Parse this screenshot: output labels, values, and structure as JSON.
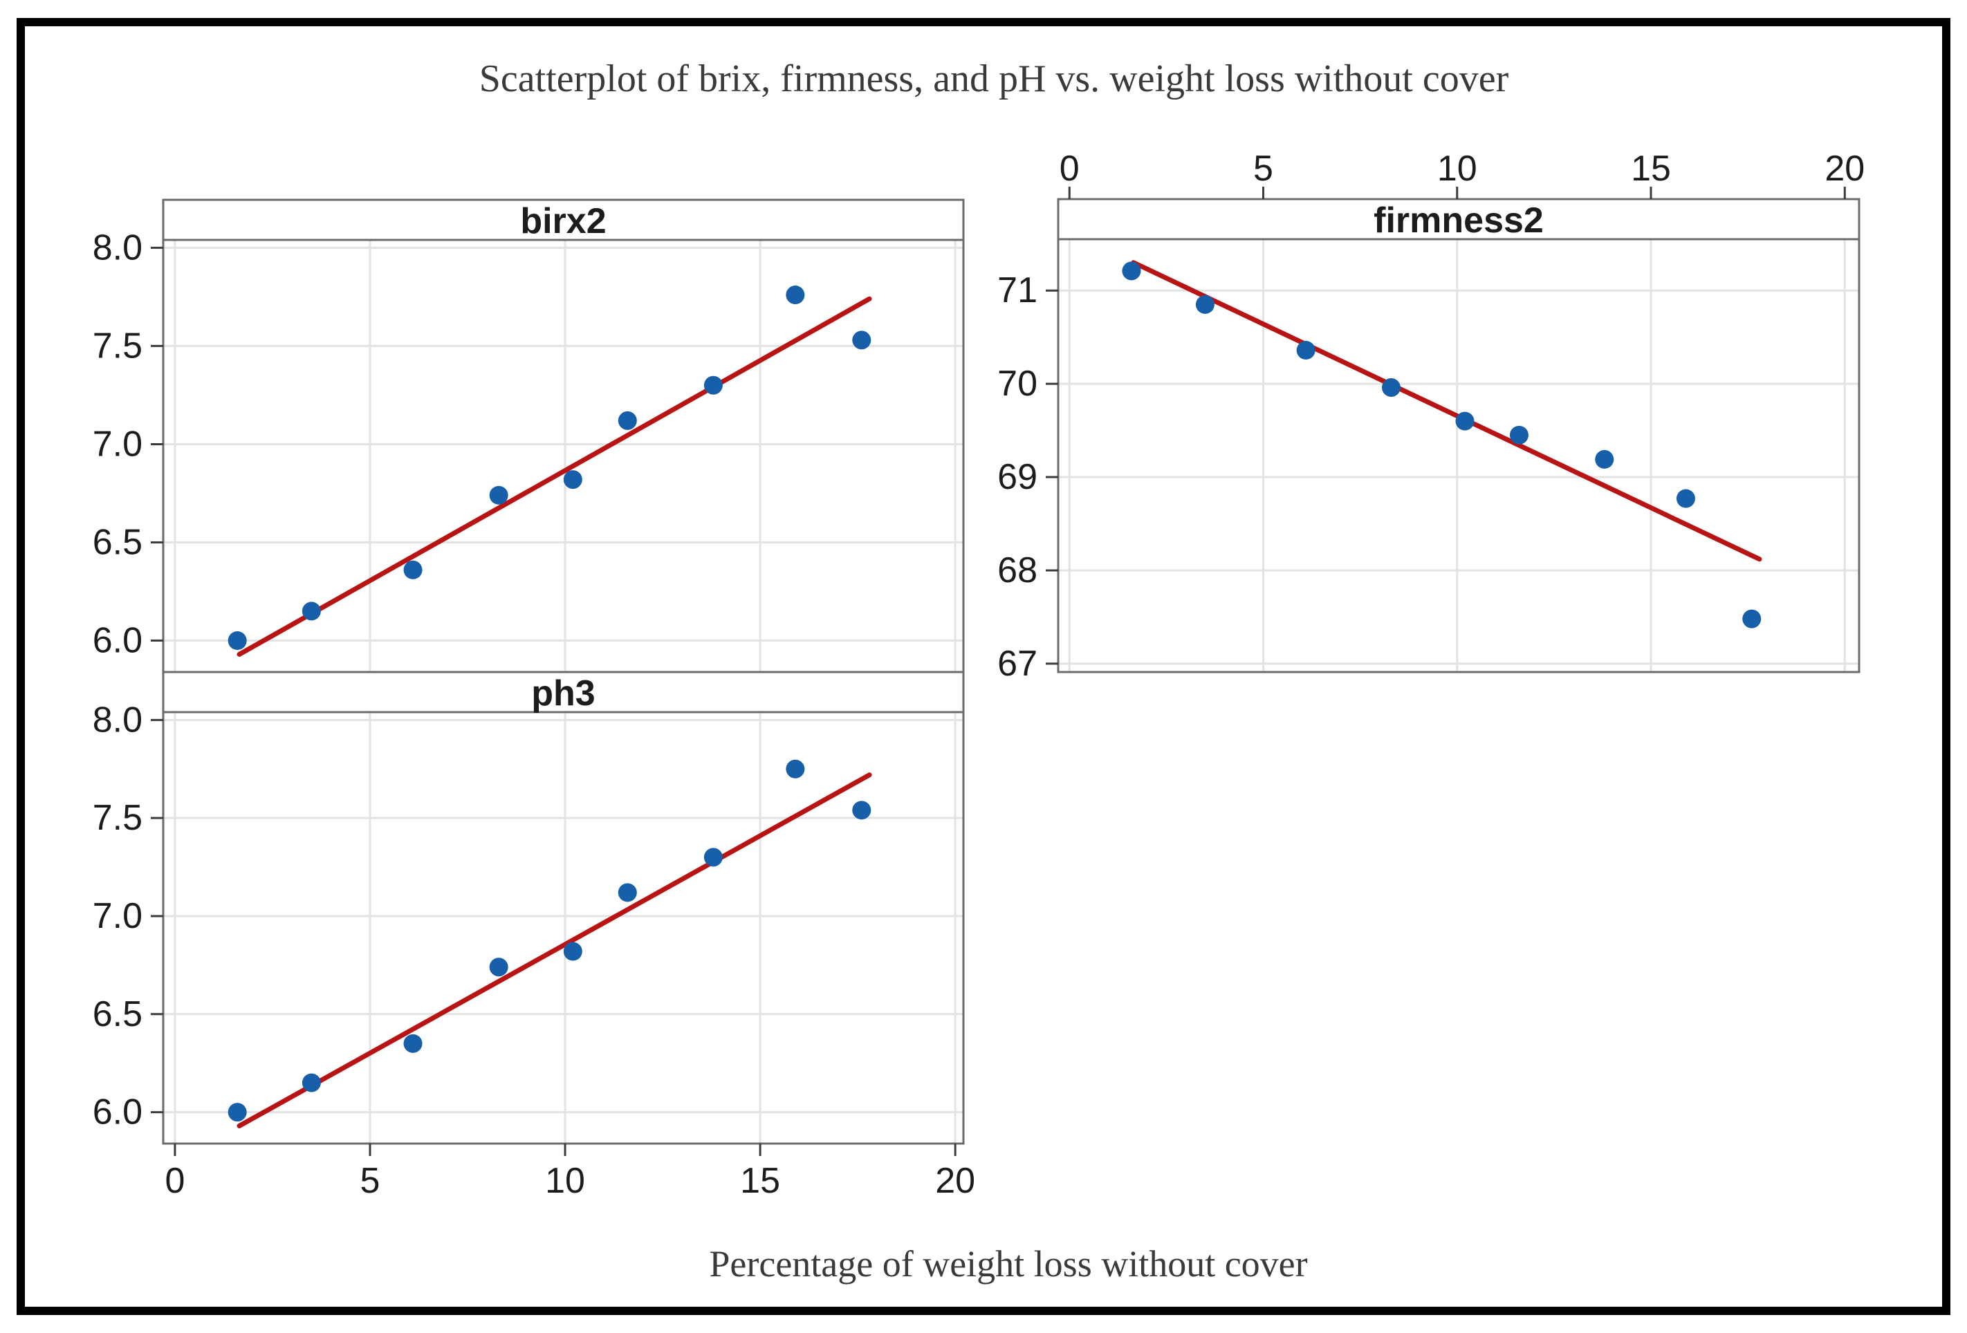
{
  "figure": {
    "title": "Scatterplot of brix, firmness, and pH vs. weight loss without cover",
    "xlabel": "Percentage of weight loss without cover"
  },
  "colors": {
    "background": "#FFFFFF",
    "frame": "#000000",
    "point": "#175FA9",
    "fit_line": "#B81414",
    "grid": "#E3E3E3",
    "plot_border": "#6B6B6B",
    "tick_mark": "#3C3C3C",
    "tick_text": "#1C1C1C",
    "title_text": "#3A3A3A"
  },
  "chart_data": [
    {
      "type": "scatter",
      "title": "birx2",
      "x": [
        1.6,
        3.5,
        6.1,
        8.3,
        10.2,
        11.6,
        13.8,
        15.9,
        17.6
      ],
      "y": [
        6.0,
        6.15,
        6.36,
        6.74,
        6.82,
        7.12,
        7.3,
        7.76,
        7.53
      ],
      "fit_line": {
        "x1": 1.65,
        "y1": 5.93,
        "x2": 17.8,
        "y2": 7.74
      },
      "x_ticks": [
        0,
        5,
        10,
        15,
        20
      ],
      "x_tick_labels": [
        "0",
        "5",
        "10",
        "15",
        "20"
      ],
      "y_ticks": [
        8.0,
        7.5,
        7.0,
        6.5,
        6.0
      ],
      "y_tick_labels": [
        "8.0",
        "7.5",
        "7.0",
        "6.5",
        "6.0"
      ],
      "xlim": [
        -0.3,
        20.21
      ],
      "ylim": [
        5.84,
        8.04
      ],
      "x_axis_side": "none",
      "y_axis_side": "left",
      "grid": true
    },
    {
      "type": "scatter",
      "title": "firmness2",
      "x": [
        1.6,
        3.5,
        6.1,
        8.3,
        10.2,
        11.6,
        13.8,
        15.9,
        17.6
      ],
      "y": [
        71.21,
        70.85,
        70.36,
        69.96,
        69.6,
        69.45,
        69.19,
        68.77,
        67.48
      ],
      "fit_line": {
        "x1": 1.65,
        "y1": 71.3,
        "x2": 17.8,
        "y2": 68.12
      },
      "x_ticks": [
        0,
        5,
        10,
        15,
        20
      ],
      "x_tick_labels": [
        "0",
        "5",
        "10",
        "15",
        "20"
      ],
      "y_ticks": [
        71,
        70,
        69,
        68,
        67
      ],
      "y_tick_labels": [
        "71",
        "70",
        "69",
        "68",
        "67"
      ],
      "xlim": [
        -0.29,
        20.37
      ],
      "ylim": [
        66.91,
        71.55
      ],
      "x_axis_side": "top",
      "y_axis_side": "left",
      "grid": true
    },
    {
      "type": "scatter",
      "title": "ph3",
      "x": [
        1.6,
        3.5,
        6.1,
        8.3,
        10.2,
        11.6,
        13.8,
        15.9,
        17.6
      ],
      "y": [
        6.0,
        6.15,
        6.35,
        6.74,
        6.82,
        7.12,
        7.3,
        7.75,
        7.54
      ],
      "fit_line": {
        "x1": 1.65,
        "y1": 5.93,
        "x2": 17.8,
        "y2": 7.72
      },
      "x_ticks": [
        0,
        5,
        10,
        15,
        20
      ],
      "x_tick_labels": [
        "0",
        "5",
        "10",
        "15",
        "20"
      ],
      "y_ticks": [
        8.0,
        7.5,
        7.0,
        6.5,
        6.0
      ],
      "y_tick_labels": [
        "8.0",
        "7.5",
        "7.0",
        "6.5",
        "6.0"
      ],
      "xlim": [
        -0.3,
        20.21
      ],
      "ylim": [
        5.84,
        8.04
      ],
      "x_axis_side": "bottom",
      "y_axis_side": "left",
      "grid": true
    }
  ]
}
